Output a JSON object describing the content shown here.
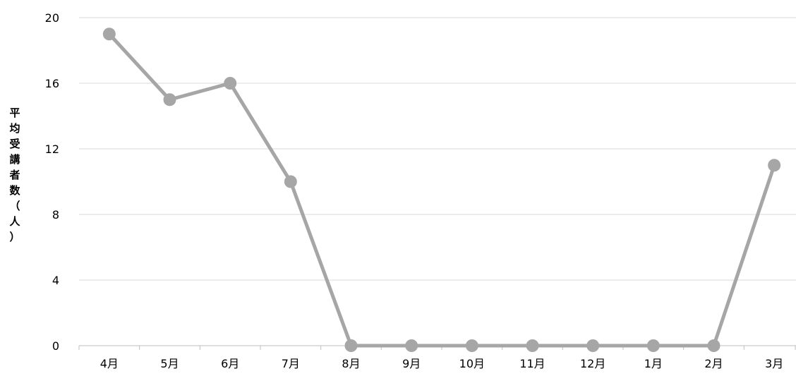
{
  "chart_data": {
    "type": "line",
    "categories": [
      "4月",
      "5月",
      "6月",
      "7月",
      "8月",
      "9月",
      "10月",
      "11月",
      "12月",
      "1月",
      "2月",
      "3月"
    ],
    "series": [
      {
        "values": [
          19,
          15,
          16,
          10,
          0,
          0,
          0,
          0,
          0,
          0,
          0,
          11
        ]
      }
    ],
    "ylabel": "平均受講者数（人）",
    "ylim": [
      0,
      20
    ],
    "yticks": [
      0,
      4,
      8,
      12,
      16,
      20
    ],
    "grid": true,
    "colors": {
      "line": "#a6a6a6",
      "marker": "#a6a6a6",
      "grid": "#d9d9d9",
      "axis": "#bfbfbf"
    }
  }
}
